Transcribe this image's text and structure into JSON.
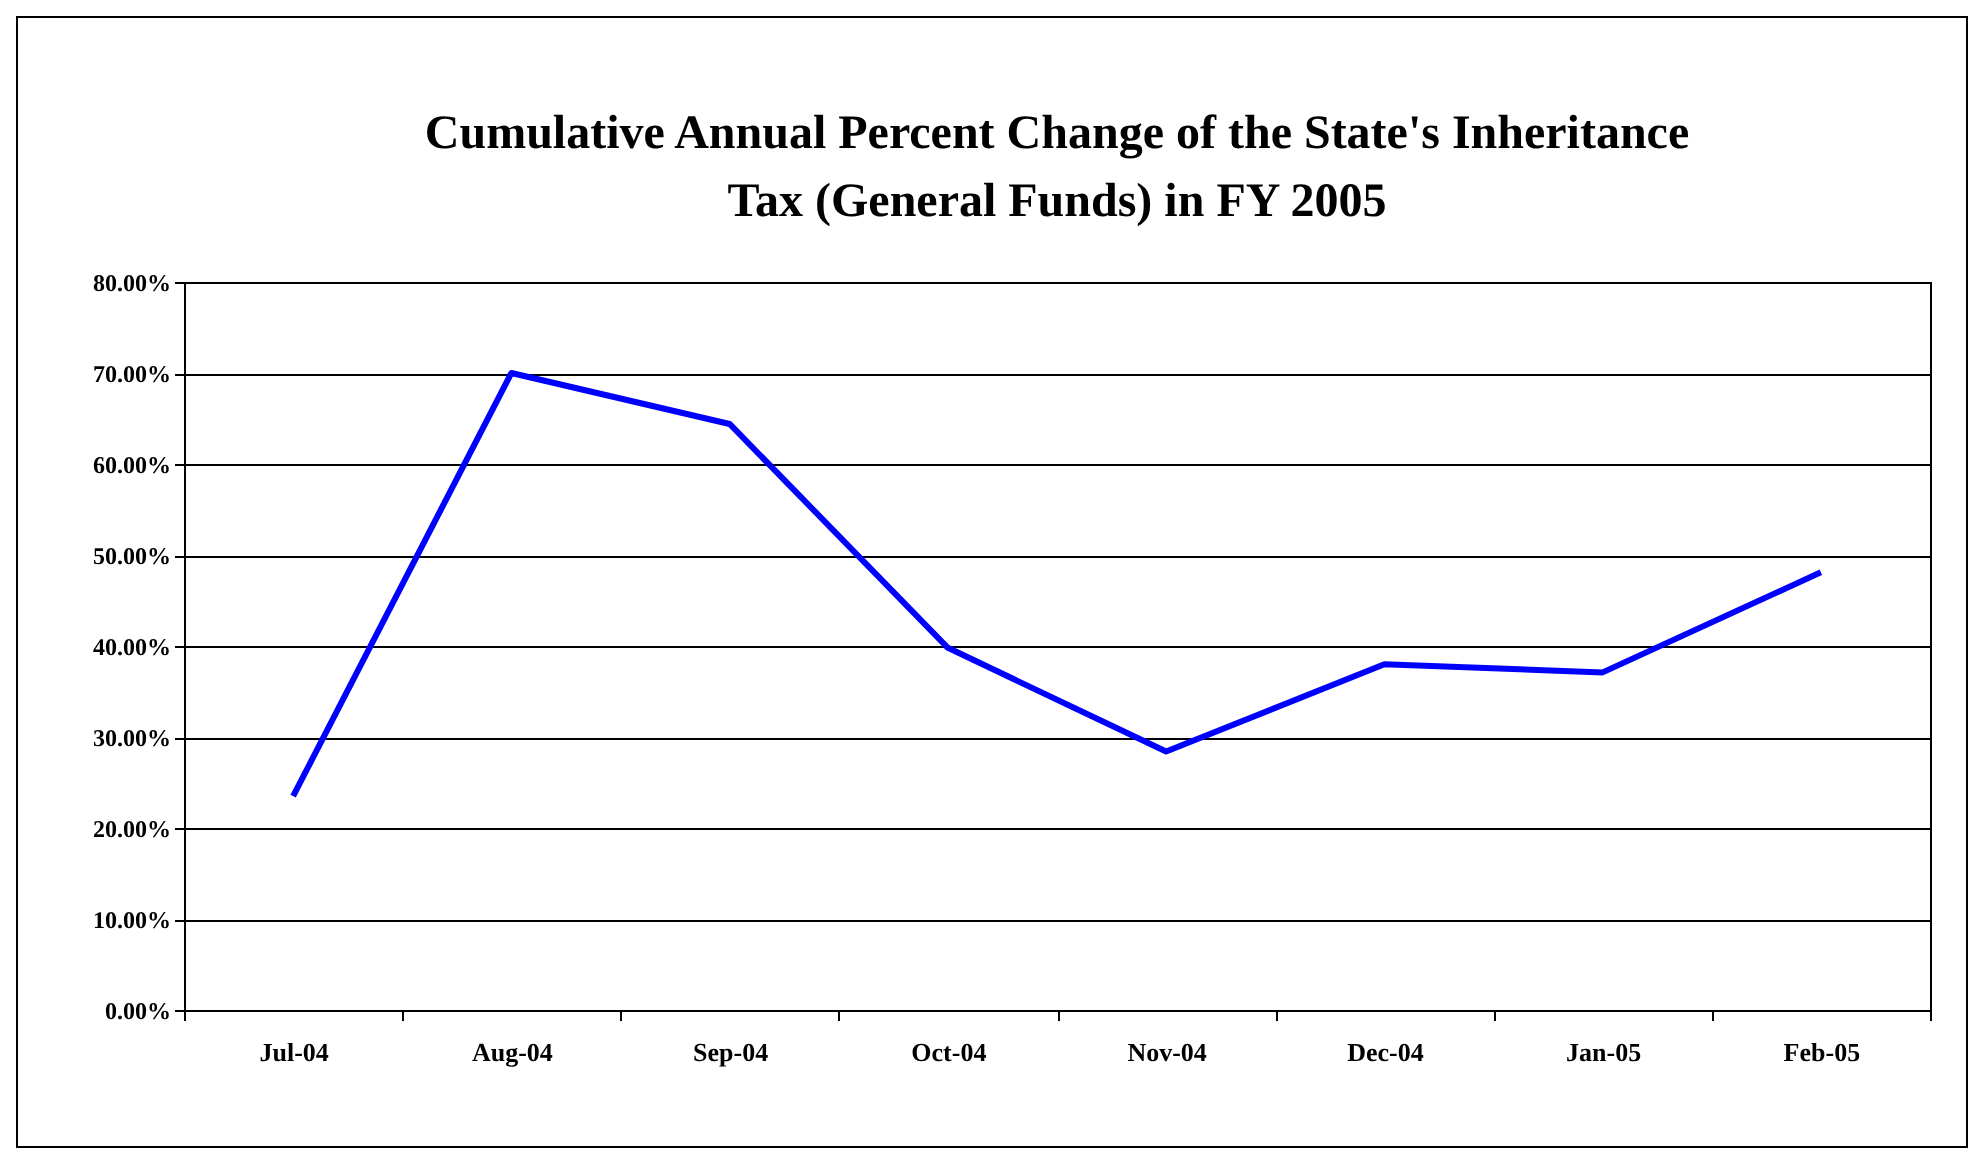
{
  "chart_data": {
    "type": "line",
    "title": "Cumulative Annual Percent Change of the State's Inheritance Tax (General Funds) in FY 2005",
    "categories": [
      "Jul-04",
      "Aug-04",
      "Sep-04",
      "Oct-04",
      "Nov-04",
      "Dec-04",
      "Jan-05",
      "Feb-05"
    ],
    "series": [
      {
        "color": "#0000ff",
        "values": [
          23.5,
          70.0,
          64.4,
          39.8,
          28.4,
          38.0,
          37.1,
          48.1
        ]
      }
    ],
    "ylim": [
      0,
      80
    ],
    "yticks": [
      {
        "value": 0,
        "label": "0.00%"
      },
      {
        "value": 10,
        "label": "10.00%"
      },
      {
        "value": 20,
        "label": "20.00%"
      },
      {
        "value": 30,
        "label": "30.00%"
      },
      {
        "value": 40,
        "label": "40.00%"
      },
      {
        "value": 50,
        "label": "50.00%"
      },
      {
        "value": 60,
        "label": "60.00%"
      },
      {
        "value": 70,
        "label": "70.00%"
      },
      {
        "value": 80,
        "label": "80.00%"
      }
    ],
    "grid": "y",
    "marker": "none",
    "line_style": "solid"
  }
}
